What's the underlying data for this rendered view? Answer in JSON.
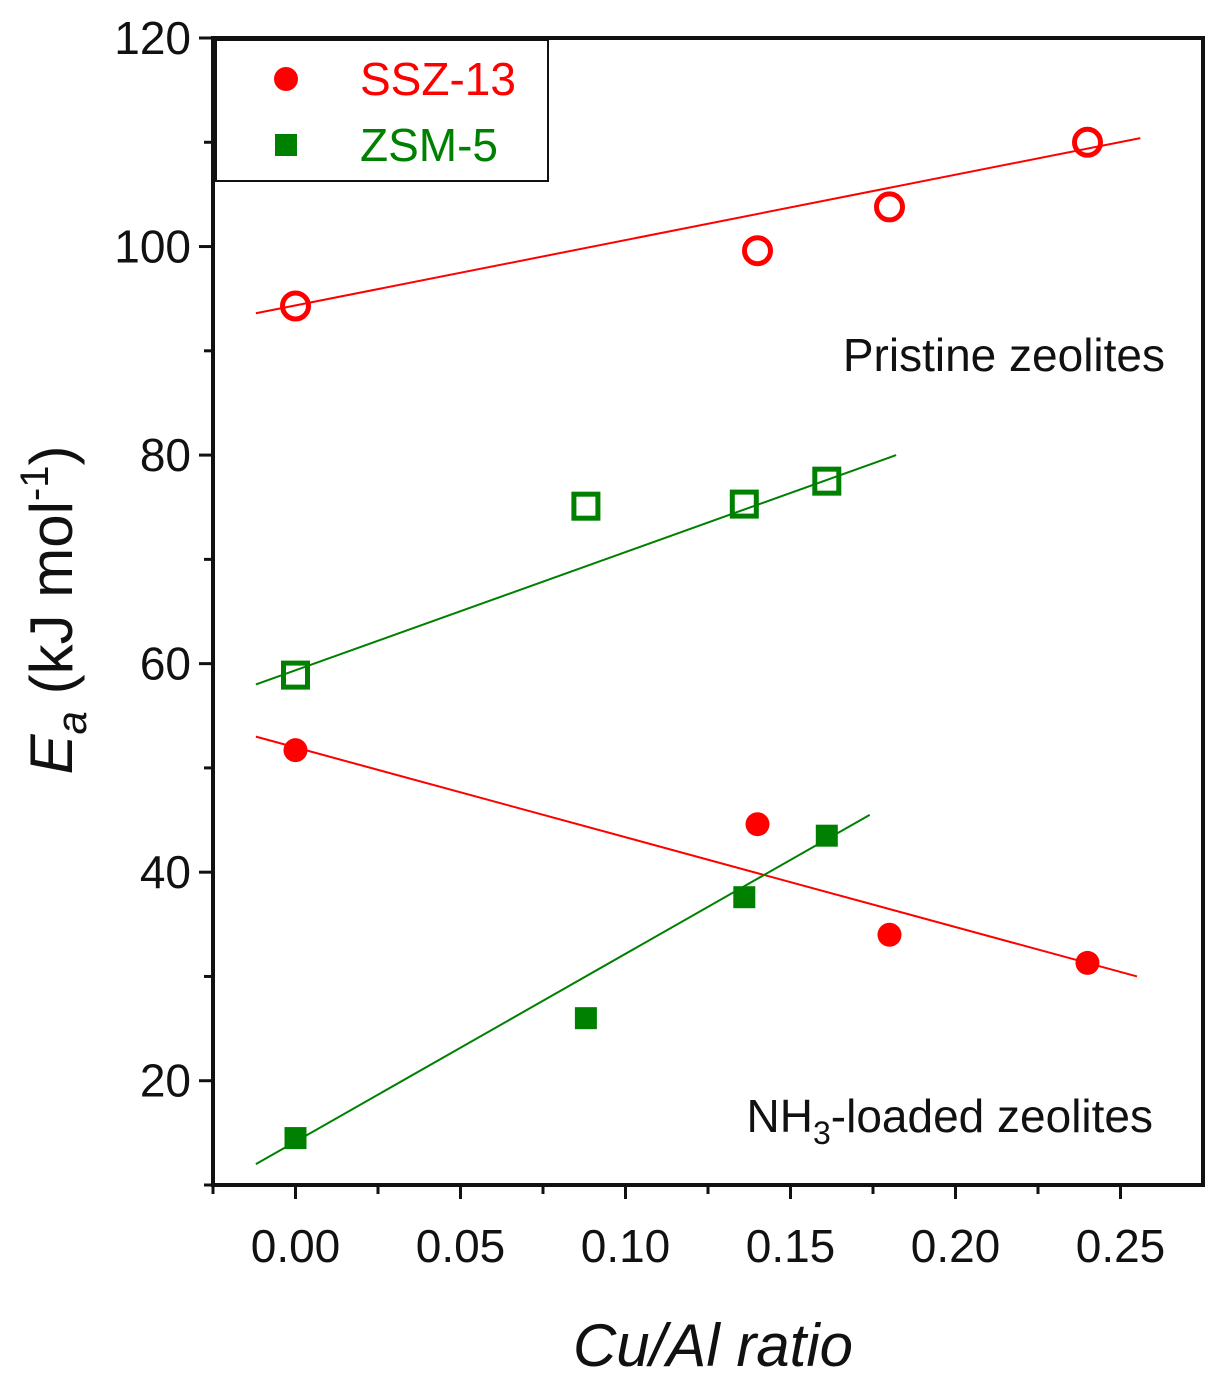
{
  "chart_data": {
    "type": "scatter",
    "xlabel": "Cu/Al ratio",
    "ylabel": {
      "main": "E",
      "sub": "a",
      "unit_prefix": " (kJ mol",
      "unit_sup": "-1",
      "unit_suffix": ")"
    },
    "xlim": [
      -0.025,
      0.275
    ],
    "ylim": [
      10,
      120
    ],
    "x_ticks": [
      "0.00",
      "0.05",
      "0.10",
      "0.15",
      "0.20",
      "0.25"
    ],
    "y_ticks": [
      "20",
      "40",
      "60",
      "80",
      "100",
      "120"
    ],
    "legend": {
      "placement": "top-left",
      "entries": [
        {
          "label": "SSZ-13",
          "marker": "circle",
          "color": "#ff0000"
        },
        {
          "label": "ZSM-5",
          "marker": "square",
          "color": "#008000"
        }
      ]
    },
    "annotations": {
      "pristine": "Pristine zeolites",
      "nh3_prefix": "NH",
      "nh3_sub": "3",
      "nh3_suffix": "-loaded zeolites"
    },
    "series": [
      {
        "group": "pristine",
        "zeolite": "SSZ-13",
        "marker": "circle",
        "filled": false,
        "color": "#ff0000",
        "points": [
          [
            0.0,
            94.3
          ],
          [
            0.14,
            99.6
          ],
          [
            0.18,
            103.8
          ],
          [
            0.24,
            110.0
          ]
        ],
        "fit": [
          [
            -0.012,
            93.6
          ],
          [
            0.256,
            110.4
          ]
        ]
      },
      {
        "group": "pristine",
        "zeolite": "ZSM-5",
        "marker": "square",
        "filled": false,
        "color": "#008000",
        "points": [
          [
            0.0,
            58.9
          ],
          [
            0.088,
            75.1
          ],
          [
            0.136,
            75.3
          ],
          [
            0.161,
            77.5
          ]
        ],
        "fit": [
          [
            -0.012,
            58.0
          ],
          [
            0.182,
            80.0
          ]
        ]
      },
      {
        "group": "NH3-loaded",
        "zeolite": "SSZ-13",
        "marker": "circle",
        "filled": true,
        "color": "#ff0000",
        "points": [
          [
            0.0,
            51.7
          ],
          [
            0.14,
            44.6
          ],
          [
            0.18,
            34.0
          ],
          [
            0.24,
            31.3
          ]
        ],
        "fit": [
          [
            -0.012,
            53.0
          ],
          [
            0.255,
            30.0
          ]
        ]
      },
      {
        "group": "NH3-loaded",
        "zeolite": "ZSM-5",
        "marker": "square",
        "filled": true,
        "color": "#008000",
        "points": [
          [
            0.0,
            14.5
          ],
          [
            0.088,
            26.0
          ],
          [
            0.136,
            37.6
          ],
          [
            0.161,
            43.5
          ]
        ],
        "fit": [
          [
            -0.012,
            12.0
          ],
          [
            0.174,
            45.5
          ]
        ]
      }
    ]
  }
}
